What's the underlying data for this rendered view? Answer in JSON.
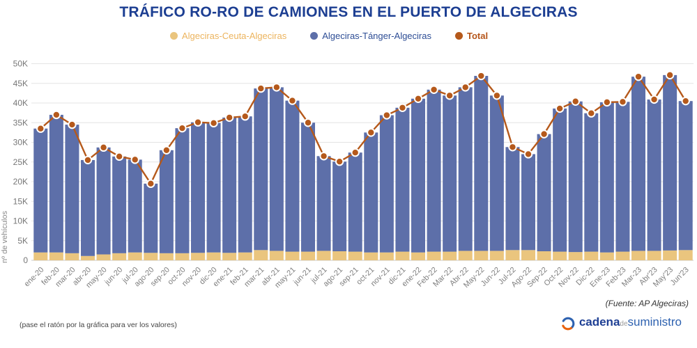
{
  "title": "TRÁFICO RO-RO DE CAMIONES EN EL PUERTO DE ALGECIRAS",
  "legend": [
    {
      "label": "Algeciras-Ceuta-Algeciras",
      "dot_color": "#eac57e",
      "text_color": "#ecb45e"
    },
    {
      "label": "Algeciras-Tánger-Algeciras",
      "dot_color": "#5d6fa9",
      "text_color": "#2d4d95"
    },
    {
      "label": "Total",
      "dot_color": "#b5591b",
      "text_color": "#b5551a"
    }
  ],
  "chart_data": {
    "type": "bar",
    "stacked": true,
    "title": "TRÁFICO RO-RO DE CAMIONES EN EL PUERTO DE ALGECIRAS",
    "xlabel": "",
    "ylabel": "nº de vehículos",
    "ylim": [
      0,
      50000
    ],
    "grid": true,
    "legend_position": "top",
    "y_ticks": [
      "0",
      "5K",
      "10K",
      "15K",
      "20K",
      "25K",
      "30K",
      "35K",
      "40K",
      "45K",
      "50K"
    ],
    "categories": [
      "ene-20",
      "feb-20",
      "mar-20",
      "abr-20",
      "may-20",
      "jun-20",
      "jul-20",
      "ago-20",
      "sep-20",
      "oct-20",
      "nov-20",
      "dic-20",
      "ene-21",
      "feb-21",
      "mar-21",
      "abr-21",
      "may-21",
      "jun-21",
      "jul-21",
      "ago-21",
      "sep-21",
      "oct-21",
      "nov-21",
      "dic-21",
      "ene-22",
      "Feb-22",
      "Mar-22",
      "Abr-22",
      "May-22",
      "Jun-22",
      "Jul-22",
      "Ago-22",
      "Sep-22",
      "Oct-22",
      "Nov-22",
      "Dic-22",
      "Ene-23",
      "Feb-23",
      "Mar-23",
      "Abr'23",
      "May'23",
      "Jun'23"
    ],
    "series": [
      {
        "name": "Algeciras-Ceuta-Algeciras",
        "color": "#eac57e",
        "values": [
          2000,
          2000,
          1800,
          1100,
          1500,
          1800,
          2000,
          1900,
          1800,
          1800,
          1900,
          2000,
          1900,
          2000,
          2600,
          2400,
          2200,
          2200,
          2400,
          2300,
          2200,
          2000,
          2000,
          2200,
          2000,
          2200,
          2200,
          2400,
          2400,
          2400,
          2600,
          2600,
          2300,
          2200,
          2100,
          2200,
          2000,
          2200,
          2400,
          2400,
          2500,
          2600
        ]
      },
      {
        "name": "Algeciras-Tánger-Algeciras",
        "color": "#5d6fa9",
        "values": [
          31500,
          35000,
          32700,
          24400,
          27200,
          24600,
          23600,
          17600,
          26200,
          31800,
          33200,
          32900,
          34400,
          34600,
          41100,
          41600,
          38400,
          32800,
          24100,
          22800,
          25200,
          30500,
          34900,
          36600,
          39100,
          41200,
          39700,
          41600,
          44500,
          39500,
          26200,
          24400,
          29800,
          36400,
          38300,
          35200,
          38200,
          38100,
          44300,
          38500,
          44600,
          37900
        ]
      }
    ],
    "total_line": {
      "name": "Total",
      "color": "#b5591b",
      "values": [
        33500,
        37000,
        34500,
        25500,
        28700,
        26400,
        25600,
        19500,
        28000,
        33600,
        35100,
        34900,
        36300,
        36600,
        43700,
        44000,
        40600,
        35000,
        26500,
        25100,
        27400,
        32500,
        36900,
        38800,
        41100,
        43400,
        41900,
        44000,
        46900,
        41900,
        28800,
        27000,
        32100,
        38600,
        40400,
        37400,
        40200,
        40300,
        46700,
        40900,
        47100,
        40500
      ]
    }
  },
  "footer": {
    "source": "(Fuente: AP Algeciras)",
    "hint": "(pase el ratón por la gráfica para ver los valores)",
    "logo": {
      "part1": "cadena",
      "part2": "de",
      "part3": "suministro"
    }
  }
}
